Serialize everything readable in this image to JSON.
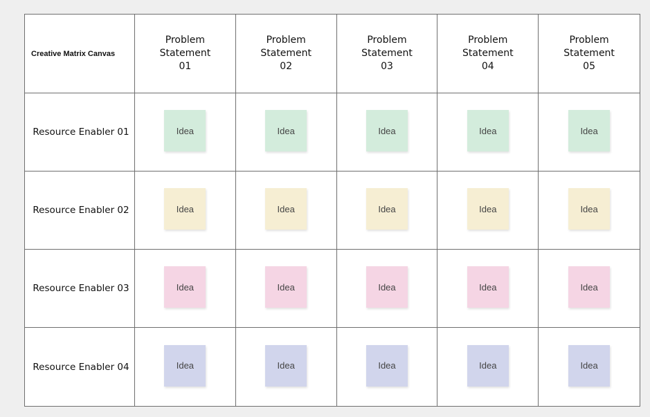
{
  "canvas": {
    "title": "Creative Matrix Canvas"
  },
  "columns": [
    {
      "label": "Problem\nStatement\n01"
    },
    {
      "label": "Problem\nStatement\n02"
    },
    {
      "label": "Problem\nStatement\n03"
    },
    {
      "label": "Problem\nStatement\n04"
    },
    {
      "label": "Problem\nStatement\n05"
    }
  ],
  "rows": [
    {
      "label": "Resource Enabler 01",
      "note_color": "#d3ecdc",
      "notes": [
        "Idea",
        "Idea",
        "Idea",
        "Idea",
        "Idea"
      ]
    },
    {
      "label": "Resource Enabler 02",
      "note_color": "#f6eed3",
      "notes": [
        "Idea",
        "Idea",
        "Idea",
        "Idea",
        "Idea"
      ]
    },
    {
      "label": "Resource Enabler 03",
      "note_color": "#f5d5e4",
      "notes": [
        "Idea",
        "Idea",
        "Idea",
        "Idea",
        "Idea"
      ]
    },
    {
      "label": "Resource Enabler 04",
      "note_color": "#d1d5ec",
      "notes": [
        "Idea",
        "Idea",
        "Idea",
        "Idea",
        "Idea"
      ]
    }
  ]
}
